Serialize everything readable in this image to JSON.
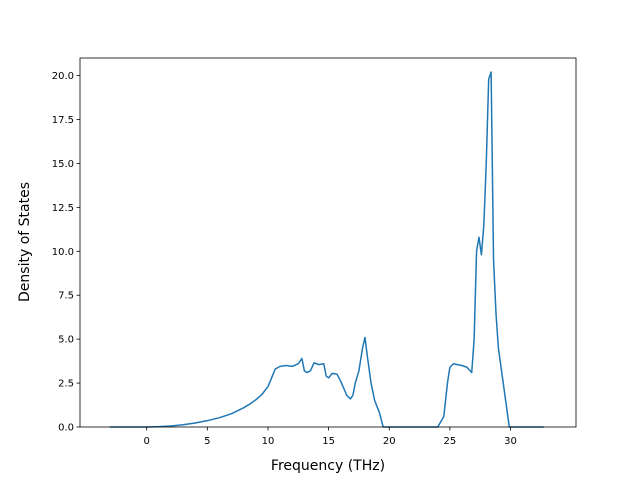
{
  "chart_data": {
    "type": "line",
    "title": "",
    "xlabel": "Frequency (THz)",
    "ylabel": "Density of States",
    "xlim": [
      -5.5,
      35.4
    ],
    "ylim": [
      0,
      21.0
    ],
    "x_ticks": [
      0,
      5,
      10,
      15,
      20,
      25,
      30
    ],
    "x_tick_labels": [
      "0",
      "5",
      "10",
      "15",
      "20",
      "25",
      "30"
    ],
    "y_ticks": [
      0,
      2.5,
      5,
      7.5,
      10,
      12.5,
      15,
      17.5,
      20
    ],
    "y_tick_labels": [
      "0.0",
      "2.5",
      "5.0",
      "7.5",
      "10.0",
      "12.5",
      "15.0",
      "17.5",
      "20.0"
    ],
    "grid": false,
    "legend": "none",
    "line_color": "#1f77b4",
    "series": [
      {
        "x": [
          -3.0,
          -1.0,
          0.0,
          1.0,
          2.0,
          3.0,
          4.0,
          5.0,
          6.0,
          7.0,
          8.0,
          8.5,
          9.0,
          9.5,
          10.0,
          10.3,
          10.6,
          11.0,
          11.5,
          12.0,
          12.5,
          12.8,
          13.0,
          13.2,
          13.5,
          13.8,
          14.2,
          14.6,
          14.8,
          15.0,
          15.3,
          15.7,
          16.0,
          16.5,
          16.8,
          17.0,
          17.2,
          17.5,
          17.8,
          18.0,
          18.2,
          18.5,
          18.8,
          19.2,
          19.5,
          20.0,
          22.0,
          24.0,
          24.5,
          24.8,
          25.0,
          25.3,
          25.6,
          26.0,
          26.4,
          26.8,
          27.0,
          27.2,
          27.4,
          27.6,
          27.8,
          28.0,
          28.2,
          28.4,
          28.6,
          28.8,
          29.0,
          29.3,
          29.6,
          29.9,
          30.2,
          31.0,
          32.7
        ],
        "y": [
          0.0,
          0.0,
          0.0,
          0.02,
          0.06,
          0.13,
          0.23,
          0.36,
          0.53,
          0.76,
          1.1,
          1.3,
          1.55,
          1.85,
          2.3,
          2.8,
          3.3,
          3.45,
          3.5,
          3.45,
          3.6,
          3.9,
          3.2,
          3.1,
          3.2,
          3.65,
          3.55,
          3.6,
          2.9,
          2.8,
          3.05,
          3.0,
          2.6,
          1.8,
          1.6,
          1.8,
          2.5,
          3.2,
          4.5,
          5.1,
          4.0,
          2.5,
          1.5,
          0.8,
          0.0,
          0.0,
          0.0,
          0.0,
          0.6,
          2.5,
          3.4,
          3.6,
          3.55,
          3.5,
          3.4,
          3.1,
          5.0,
          10.0,
          10.8,
          9.8,
          11.5,
          15.0,
          19.8,
          20.2,
          9.5,
          6.5,
          4.5,
          3.0,
          1.5,
          0.0,
          0.0,
          0.0,
          0.0
        ]
      }
    ]
  }
}
